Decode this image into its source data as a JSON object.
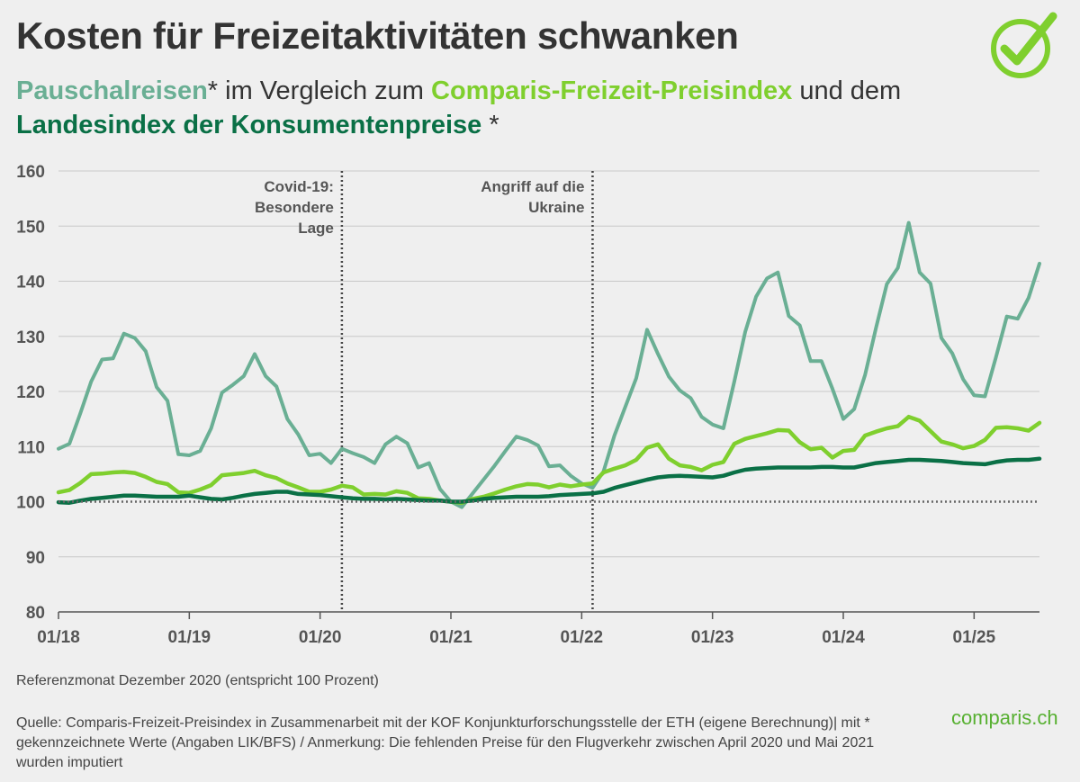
{
  "header": {
    "title": "Kosten für Freizeitaktivitäten schwanken",
    "subtitle": {
      "s1_name": "Pauschalreisen",
      "s1_after": "* im Vergleich zum ",
      "s2_name": "Comparis-Freizeit-Preisindex",
      "s2_after": " und dem",
      "s3_name": "Landesindex der Konsumentenpreise",
      "s3_after": " *"
    }
  },
  "colors": {
    "pauschalreisen": "#6aaf94",
    "freizeit": "#7fcf2e",
    "lik": "#0a7046",
    "grid": "#c8c8c8",
    "reference": "#666666"
  },
  "footer": {
    "note": "Referenzmonat Dezember 2020 (entspricht 100 Prozent)",
    "source": "Quelle: Comparis-Freizeit-Preisindex in Zusammenarbeit mit der KOF Konjunkturforschungsstelle der ETH (eigene Berechnung)| mit * gekennzeichnete Werte (Angaben LIK/BFS) / Anmerkung: Die fehlenden Preise für den Flugverkehr zwischen April 2020 und Mai 2021 wurden imputiert",
    "brand": "comparis.ch"
  },
  "icons": {
    "logo": "check-circle-icon"
  },
  "chart_data": {
    "type": "line",
    "xlabel": "",
    "ylabel": "",
    "ylim": [
      80,
      160
    ],
    "yticks": [
      80,
      90,
      100,
      110,
      120,
      130,
      140,
      150,
      160
    ],
    "xticks": [
      "01/18",
      "01/19",
      "01/20",
      "01/21",
      "01/22",
      "01/23",
      "01/24",
      "01/25"
    ],
    "x_start": "01/18",
    "x_end": "06/25",
    "reference_line": 100,
    "grid": "horizontal",
    "annotations": [
      {
        "x": "03/20",
        "label": [
          "Covid-19:",
          "Besondere",
          "Lage"
        ]
      },
      {
        "x": "02/22",
        "label": [
          "Angriff auf die",
          "Ukraine"
        ]
      }
    ],
    "series": [
      {
        "name": "Pauschalreisen",
        "color": "#6aaf94",
        "values": [
          109.6,
          110.5,
          116.0,
          121.8,
          125.8,
          126.0,
          130.5,
          129.7,
          127.3,
          120.8,
          118.3,
          108.6,
          108.4,
          109.2,
          113.3,
          119.8,
          121.2,
          122.8,
          126.8,
          122.8,
          120.9,
          115.0,
          112.2,
          108.4,
          108.7,
          107.0,
          109.6,
          108.8,
          108.1,
          107.0,
          110.4,
          111.8,
          110.6,
          106.2,
          107.0,
          102.3,
          100.0,
          99.0,
          101.5,
          104.0,
          106.5,
          109.2,
          111.8,
          111.2,
          110.2,
          106.4,
          106.6,
          104.7,
          103.3,
          102.5,
          105.5,
          112.0,
          117.2,
          122.4,
          131.2,
          126.8,
          122.7,
          120.2,
          118.8,
          115.4,
          114.0,
          113.3,
          121.8,
          130.8,
          137.2,
          140.5,
          141.6,
          133.7,
          132.0,
          125.5,
          125.5,
          120.5,
          115.0,
          116.8,
          123.0,
          131.5,
          139.5,
          142.4,
          150.6,
          141.6,
          139.6,
          129.7,
          126.9,
          122.2,
          119.3,
          119.1,
          126.2,
          133.6,
          133.2,
          137.0,
          143.2
        ]
      },
      {
        "name": "Comparis-Freizeit-Preisindex",
        "color": "#7fcf2e",
        "values": [
          101.7,
          102.1,
          103.4,
          105.0,
          105.1,
          105.3,
          105.4,
          105.2,
          104.5,
          103.6,
          103.2,
          101.7,
          101.6,
          102.2,
          103.0,
          104.8,
          105.0,
          105.2,
          105.6,
          104.8,
          104.3,
          103.3,
          102.6,
          101.8,
          101.8,
          102.2,
          102.9,
          102.6,
          101.3,
          101.4,
          101.3,
          101.9,
          101.6,
          100.6,
          100.5,
          100.2,
          100.0,
          99.8,
          100.5,
          100.9,
          101.5,
          102.2,
          102.8,
          103.2,
          103.1,
          102.6,
          103.1,
          102.8,
          103.1,
          103.3,
          105.3,
          106.0,
          106.6,
          107.6,
          109.8,
          110.4,
          107.8,
          106.6,
          106.3,
          105.7,
          106.7,
          107.2,
          110.5,
          111.4,
          111.9,
          112.4,
          113.0,
          112.9,
          110.8,
          109.5,
          109.8,
          108.0,
          109.2,
          109.4,
          112.0,
          112.7,
          113.3,
          113.7,
          115.4,
          114.7,
          112.8,
          110.9,
          110.4,
          109.7,
          110.1,
          111.2,
          113.4,
          113.5,
          113.3,
          112.9,
          114.3
        ]
      },
      {
        "name": "Landesindex der Konsumentenpreise",
        "color": "#0a7046",
        "values": [
          99.9,
          99.8,
          100.2,
          100.5,
          100.7,
          100.9,
          101.1,
          101.1,
          101.0,
          100.9,
          100.9,
          100.9,
          101.1,
          100.8,
          100.5,
          100.4,
          100.7,
          101.1,
          101.4,
          101.6,
          101.8,
          101.8,
          101.4,
          101.3,
          101.2,
          101.0,
          100.8,
          100.6,
          100.5,
          100.5,
          100.4,
          100.5,
          100.4,
          100.3,
          100.2,
          100.2,
          100.0,
          100.0,
          100.2,
          100.5,
          100.7,
          100.8,
          100.9,
          100.9,
          100.9,
          101.0,
          101.2,
          101.3,
          101.4,
          101.5,
          101.8,
          102.5,
          103.0,
          103.5,
          104.0,
          104.4,
          104.6,
          104.7,
          104.6,
          104.5,
          104.4,
          104.7,
          105.3,
          105.8,
          106.0,
          106.1,
          106.2,
          106.2,
          106.2,
          106.2,
          106.3,
          106.3,
          106.2,
          106.2,
          106.6,
          107.0,
          107.2,
          107.4,
          107.6,
          107.6,
          107.5,
          107.4,
          107.2,
          107.0,
          106.9,
          106.8,
          107.2,
          107.5,
          107.6,
          107.6,
          107.8
        ]
      }
    ]
  }
}
